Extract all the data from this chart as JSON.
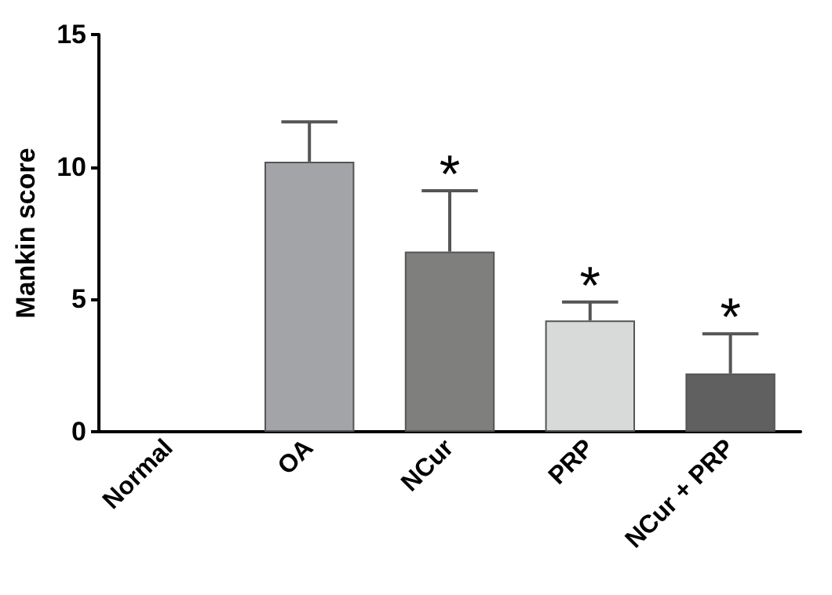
{
  "chart_data": {
    "type": "bar",
    "ylabel": "Mankin score",
    "categories": [
      "Normal",
      "OA",
      "NCur",
      "PRP",
      "NCur + PRP"
    ],
    "values": [
      0,
      10.2,
      6.8,
      4.2,
      2.2
    ],
    "colors": [
      "#a3a4a8",
      "#a3a4a8",
      "#7f807e",
      "#d8d9d9",
      "#5f605f"
    ],
    "errors": [
      null,
      [
        10.2,
        11.7
      ],
      [
        6.8,
        9.1
      ],
      [
        4.2,
        4.9
      ],
      [
        2.2,
        3.7
      ]
    ],
    "ylim": [
      0,
      15
    ],
    "yticks": [
      0,
      5,
      10,
      15
    ],
    "grid": false,
    "annotations": [
      {
        "text": "*",
        "x": "NCur",
        "y": 9.1
      },
      {
        "text": "*",
        "x": "PRP",
        "y": 4.9
      },
      {
        "text": "*",
        "x": "NCur + PRP",
        "y": 3.7
      }
    ]
  }
}
